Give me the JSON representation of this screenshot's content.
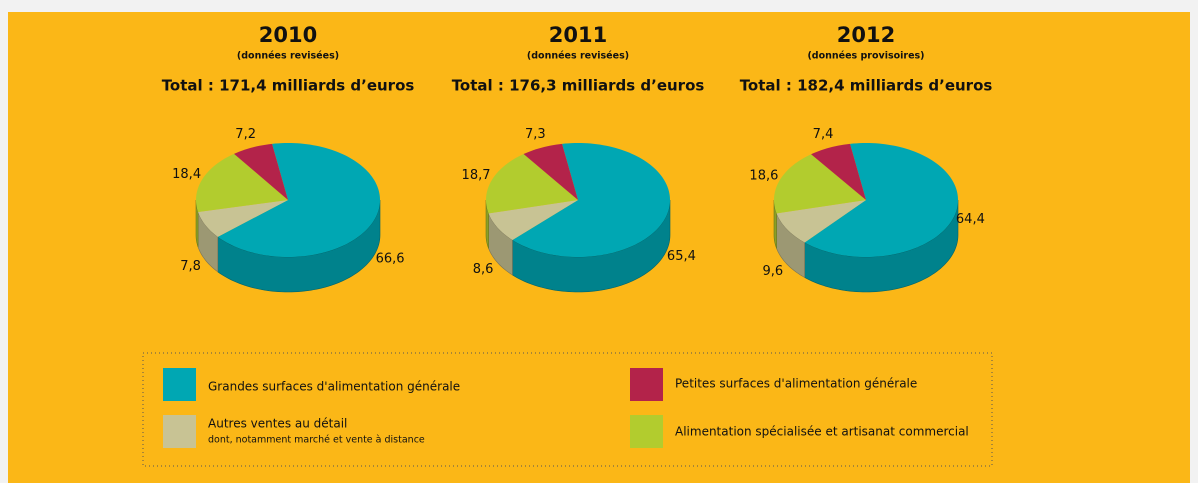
{
  "chart_data": [
    {
      "type": "pie",
      "title": "2010",
      "subtitle": "(données revisées)",
      "total": "Total : 171,4 milliards d’euros",
      "values": [
        66.6,
        7.2,
        7.8,
        18.4
      ],
      "value_labels": [
        "66,6",
        "7,2",
        "7,8",
        "18,4"
      ]
    },
    {
      "type": "pie",
      "title": "2011",
      "subtitle": "(données revisées)",
      "total": "Total : 176,3 milliards d’euros",
      "values": [
        65.4,
        7.3,
        8.6,
        18.7
      ],
      "value_labels": [
        "65,4",
        "7,3",
        "8,6",
        "18,7"
      ]
    },
    {
      "type": "pie",
      "title": "2012",
      "subtitle": "(données provisoires)",
      "total": "Total : 182,4 milliards d’euros",
      "values": [
        64.4,
        7.4,
        9.6,
        18.6
      ],
      "value_labels": [
        "64,4",
        "7,4",
        "9,6",
        "18,6"
      ]
    }
  ],
  "legend": {
    "items": [
      {
        "name": "Grandes surfaces d'alimentation générale",
        "color": "#00a7b3"
      },
      {
        "name": "Petites surfaces  d'alimentation générale",
        "color": "#b3234a"
      },
      {
        "name": "Autres ventes au détail",
        "note": "dont, notamment marché et vente à distance",
        "color": "#c8c394"
      },
      {
        "name": "Alimentation spécialisée et artisanat commercial",
        "color": "#b2cc2e"
      }
    ]
  }
}
